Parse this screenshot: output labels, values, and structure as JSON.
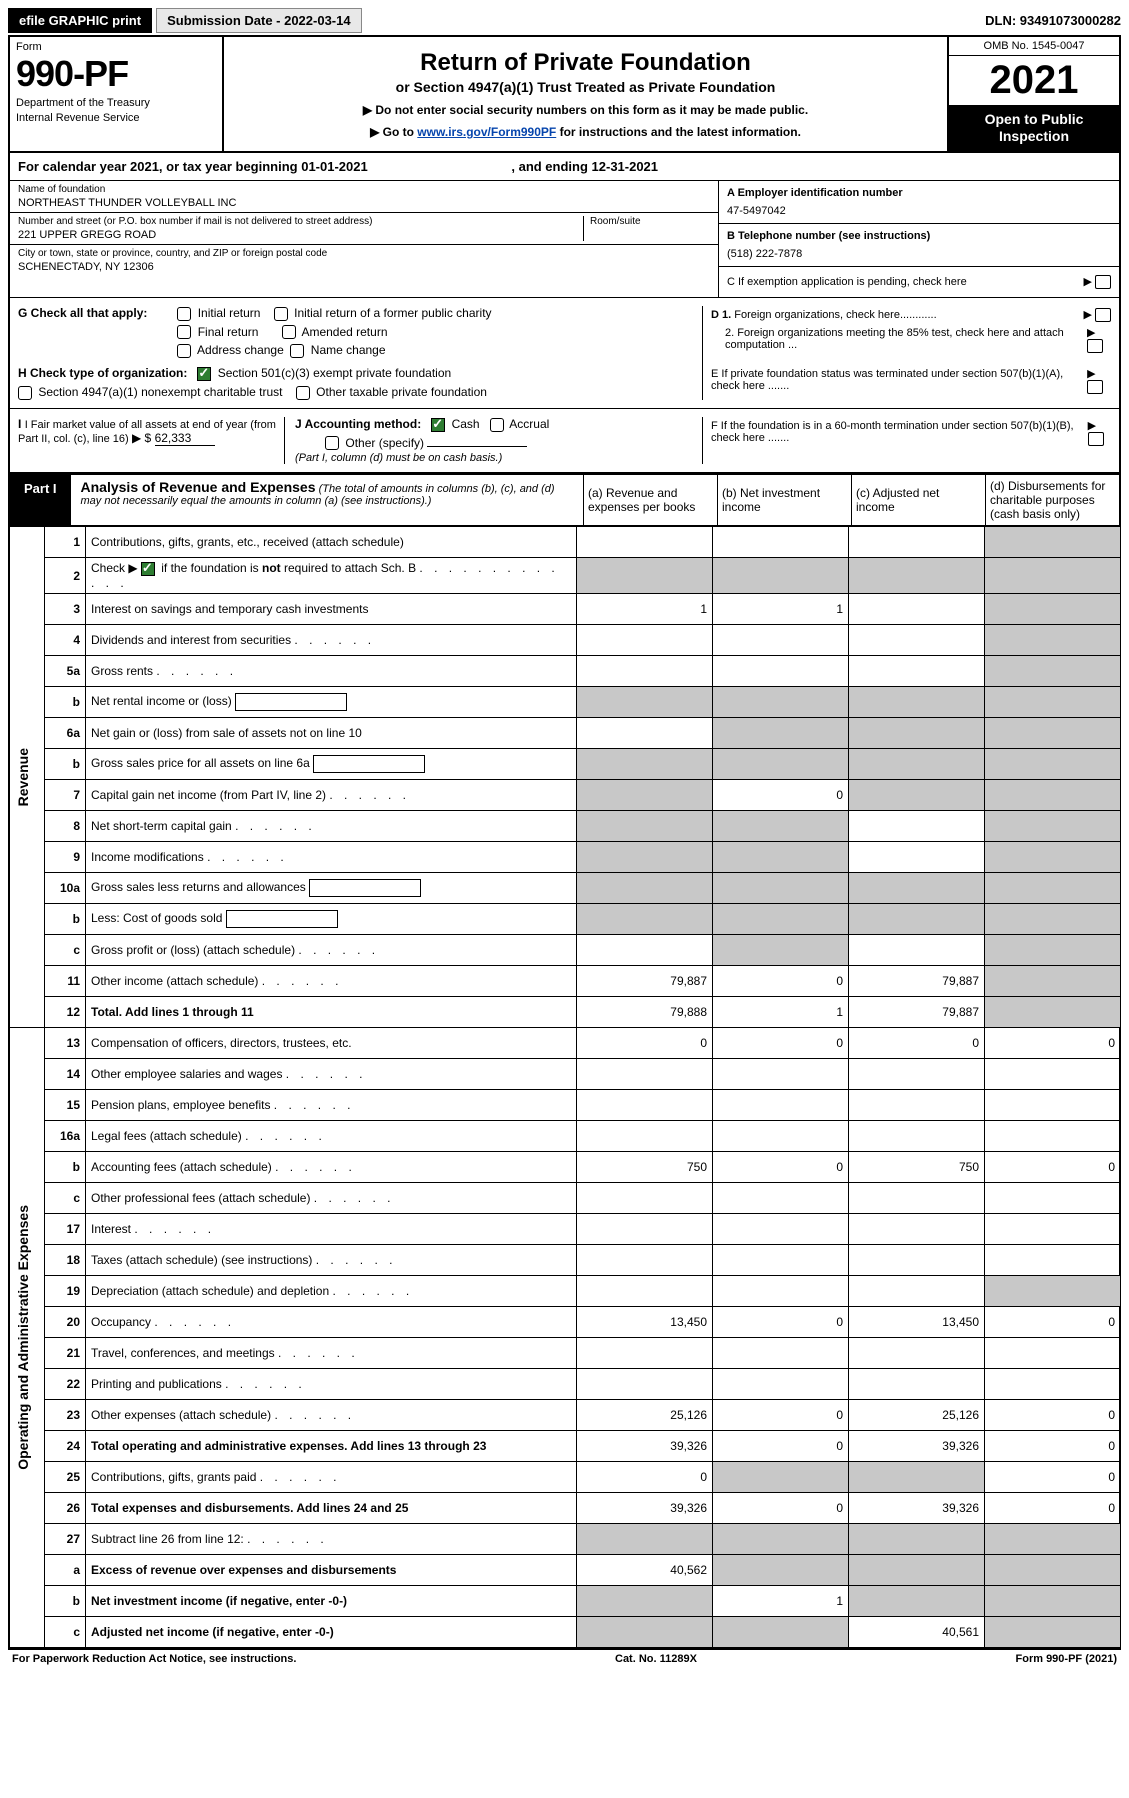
{
  "topbar": {
    "efile": "efile GRAPHIC print",
    "submission": "Submission Date - 2022-03-14",
    "dln": "DLN: 93491073000282"
  },
  "header": {
    "form_label": "Form",
    "form_number": "990-PF",
    "dept1": "Department of the Treasury",
    "dept2": "Internal Revenue Service",
    "title": "Return of Private Foundation",
    "subtitle": "or Section 4947(a)(1) Trust Treated as Private Foundation",
    "instr1": "▶ Do not enter social security numbers on this form as it may be made public.",
    "instr2_pre": "▶ Go to ",
    "instr2_link": "www.irs.gov/Form990PF",
    "instr2_post": " for instructions and the latest information.",
    "omb": "OMB No. 1545-0047",
    "tax_year": "2021",
    "open_public": "Open to Public Inspection"
  },
  "calyear": {
    "text": "For calendar year 2021, or tax year beginning 01-01-2021",
    "ending": ", and ending 12-31-2021"
  },
  "ident": {
    "name_label": "Name of foundation",
    "name_value": "NORTHEAST THUNDER VOLLEYBALL INC",
    "addr_label": "Number and street (or P.O. box number if mail is not delivered to street address)",
    "addr_value": "221 UPPER GREGG ROAD",
    "room_label": "Room/suite",
    "city_label": "City or town, state or province, country, and ZIP or foreign postal code",
    "city_value": "SCHENECTADY, NY  12306",
    "a_label": "A Employer identification number",
    "a_value": "47-5497042",
    "b_label": "B Telephone number (see instructions)",
    "b_value": "(518) 222-7878",
    "c_label": "C If exemption application is pending, check here"
  },
  "checks": {
    "g_label": "G Check all that apply:",
    "g_opts": [
      "Initial return",
      "Initial return of a former public charity",
      "Final return",
      "Amended return",
      "Address change",
      "Name change"
    ],
    "h_label": "H Check type of organization:",
    "h_opt1": "Section 501(c)(3) exempt private foundation",
    "h_opt2": "Section 4947(a)(1) nonexempt charitable trust",
    "h_opt3": "Other taxable private foundation",
    "i_label": "I Fair market value of all assets at end of year (from Part II, col. (c), line 16)",
    "i_value": "62,333",
    "j_label": "J Accounting method:",
    "j_cash": "Cash",
    "j_accrual": "Accrual",
    "j_other": "Other (specify)",
    "j_note": "(Part I, column (d) must be on cash basis.)",
    "d1": "D 1. Foreign organizations, check here",
    "d2": "2. Foreign organizations meeting the 85% test, check here and attach computation ...",
    "e": "E  If private foundation status was terminated under section 507(b)(1)(A), check here .......",
    "f": "F  If the foundation is in a 60-month termination under section 507(b)(1)(B), check here ......."
  },
  "part1": {
    "label": "Part I",
    "title": "Analysis of Revenue and Expenses",
    "note": "(The total of amounts in columns (b), (c), and (d) may not necessarily equal the amounts in column (a) (see instructions).)",
    "col_a": "(a)   Revenue and expenses per books",
    "col_b": "(b)   Net investment income",
    "col_c": "(c)   Adjusted net income",
    "col_d": "(d)  Disbursements for charitable purposes (cash basis only)"
  },
  "side_labels": {
    "revenue": "Revenue",
    "expenses": "Operating and Administrative Expenses"
  },
  "rows": [
    {
      "n": "1",
      "desc": "Contributions, gifts, grants, etc., received (attach schedule)",
      "a": "",
      "b": "",
      "c": "",
      "d": "",
      "shade_d": true
    },
    {
      "n": "2",
      "desc": "Check ▶ ☑ if the foundation is not required to attach Sch. B",
      "a": "",
      "b": "",
      "c": "",
      "d": "",
      "shade_all": true,
      "checkbox": true
    },
    {
      "n": "3",
      "desc": "Interest on savings and temporary cash investments",
      "a": "1",
      "b": "1",
      "c": "",
      "d": "",
      "shade_d": true
    },
    {
      "n": "4",
      "desc": "Dividends and interest from securities",
      "a": "",
      "b": "",
      "c": "",
      "d": "",
      "shade_d": true
    },
    {
      "n": "5a",
      "desc": "Gross rents",
      "a": "",
      "b": "",
      "c": "",
      "d": "",
      "shade_d": true
    },
    {
      "n": "b",
      "desc": "Net rental income or (loss)",
      "a": "",
      "b": "",
      "c": "",
      "d": "",
      "shade_all": true,
      "inline_box": true
    },
    {
      "n": "6a",
      "desc": "Net gain or (loss) from sale of assets not on line 10",
      "a": "",
      "b": "",
      "c": "",
      "d": "",
      "shade_bcd": true
    },
    {
      "n": "b",
      "desc": "Gross sales price for all assets on line 6a",
      "a": "",
      "b": "",
      "c": "",
      "d": "",
      "shade_all": true,
      "inline_box": true
    },
    {
      "n": "7",
      "desc": "Capital gain net income (from Part IV, line 2)",
      "a": "",
      "b": "0",
      "c": "",
      "d": "",
      "shade_a": true,
      "shade_cd": true
    },
    {
      "n": "8",
      "desc": "Net short-term capital gain",
      "a": "",
      "b": "",
      "c": "",
      "d": "",
      "shade_ab": true,
      "shade_d": true
    },
    {
      "n": "9",
      "desc": "Income modifications",
      "a": "",
      "b": "",
      "c": "",
      "d": "",
      "shade_ab": true,
      "shade_d": true
    },
    {
      "n": "10a",
      "desc": "Gross sales less returns and allowances",
      "a": "",
      "b": "",
      "c": "",
      "d": "",
      "shade_all": true,
      "inline_box": true
    },
    {
      "n": "b",
      "desc": "Less: Cost of goods sold",
      "a": "",
      "b": "",
      "c": "",
      "d": "",
      "shade_all": true,
      "inline_box": true
    },
    {
      "n": "c",
      "desc": "Gross profit or (loss) (attach schedule)",
      "a": "",
      "b": "",
      "c": "",
      "d": "",
      "shade_b": true,
      "shade_d": true
    },
    {
      "n": "11",
      "desc": "Other income (attach schedule)",
      "a": "79,887",
      "b": "0",
      "c": "79,887",
      "d": "",
      "shade_d": true
    },
    {
      "n": "12",
      "desc": "Total. Add lines 1 through 11",
      "a": "79,888",
      "b": "1",
      "c": "79,887",
      "d": "",
      "shade_d": true,
      "bold": true
    },
    {
      "n": "13",
      "desc": "Compensation of officers, directors, trustees, etc.",
      "a": "0",
      "b": "0",
      "c": "0",
      "d": "0"
    },
    {
      "n": "14",
      "desc": "Other employee salaries and wages",
      "a": "",
      "b": "",
      "c": "",
      "d": ""
    },
    {
      "n": "15",
      "desc": "Pension plans, employee benefits",
      "a": "",
      "b": "",
      "c": "",
      "d": ""
    },
    {
      "n": "16a",
      "desc": "Legal fees (attach schedule)",
      "a": "",
      "b": "",
      "c": "",
      "d": ""
    },
    {
      "n": "b",
      "desc": "Accounting fees (attach schedule)",
      "a": "750",
      "b": "0",
      "c": "750",
      "d": "0"
    },
    {
      "n": "c",
      "desc": "Other professional fees (attach schedule)",
      "a": "",
      "b": "",
      "c": "",
      "d": ""
    },
    {
      "n": "17",
      "desc": "Interest",
      "a": "",
      "b": "",
      "c": "",
      "d": ""
    },
    {
      "n": "18",
      "desc": "Taxes (attach schedule) (see instructions)",
      "a": "",
      "b": "",
      "c": "",
      "d": ""
    },
    {
      "n": "19",
      "desc": "Depreciation (attach schedule) and depletion",
      "a": "",
      "b": "",
      "c": "",
      "d": "",
      "shade_d": true
    },
    {
      "n": "20",
      "desc": "Occupancy",
      "a": "13,450",
      "b": "0",
      "c": "13,450",
      "d": "0"
    },
    {
      "n": "21",
      "desc": "Travel, conferences, and meetings",
      "a": "",
      "b": "",
      "c": "",
      "d": ""
    },
    {
      "n": "22",
      "desc": "Printing and publications",
      "a": "",
      "b": "",
      "c": "",
      "d": ""
    },
    {
      "n": "23",
      "desc": "Other expenses (attach schedule)",
      "a": "25,126",
      "b": "0",
      "c": "25,126",
      "d": "0"
    },
    {
      "n": "24",
      "desc": "Total operating and administrative expenses. Add lines 13 through 23",
      "a": "39,326",
      "b": "0",
      "c": "39,326",
      "d": "0",
      "bold": true
    },
    {
      "n": "25",
      "desc": "Contributions, gifts, grants paid",
      "a": "0",
      "b": "",
      "c": "",
      "d": "0",
      "shade_bc": true
    },
    {
      "n": "26",
      "desc": "Total expenses and disbursements. Add lines 24 and 25",
      "a": "39,326",
      "b": "0",
      "c": "39,326",
      "d": "0",
      "bold": true
    },
    {
      "n": "27",
      "desc": "Subtract line 26 from line 12:",
      "a": "",
      "b": "",
      "c": "",
      "d": "",
      "shade_all": true
    },
    {
      "n": "a",
      "desc": "Excess of revenue over expenses and disbursements",
      "a": "40,562",
      "b": "",
      "c": "",
      "d": "",
      "shade_bcd": true,
      "bold": true
    },
    {
      "n": "b",
      "desc": "Net investment income (if negative, enter -0-)",
      "a": "",
      "b": "1",
      "c": "",
      "d": "",
      "shade_a": true,
      "shade_cd": true,
      "bold": true
    },
    {
      "n": "c",
      "desc": "Adjusted net income (if negative, enter -0-)",
      "a": "",
      "b": "",
      "c": "40,561",
      "d": "",
      "shade_ab": true,
      "shade_d": true,
      "bold": true
    }
  ],
  "footer": {
    "left": "For Paperwork Reduction Act Notice, see instructions.",
    "center": "Cat. No. 11289X",
    "right": "Form 990-PF (2021)"
  },
  "colors": {
    "shade": "#c8c8c8",
    "check_green": "#2e7d32",
    "link": "#0645ad"
  }
}
